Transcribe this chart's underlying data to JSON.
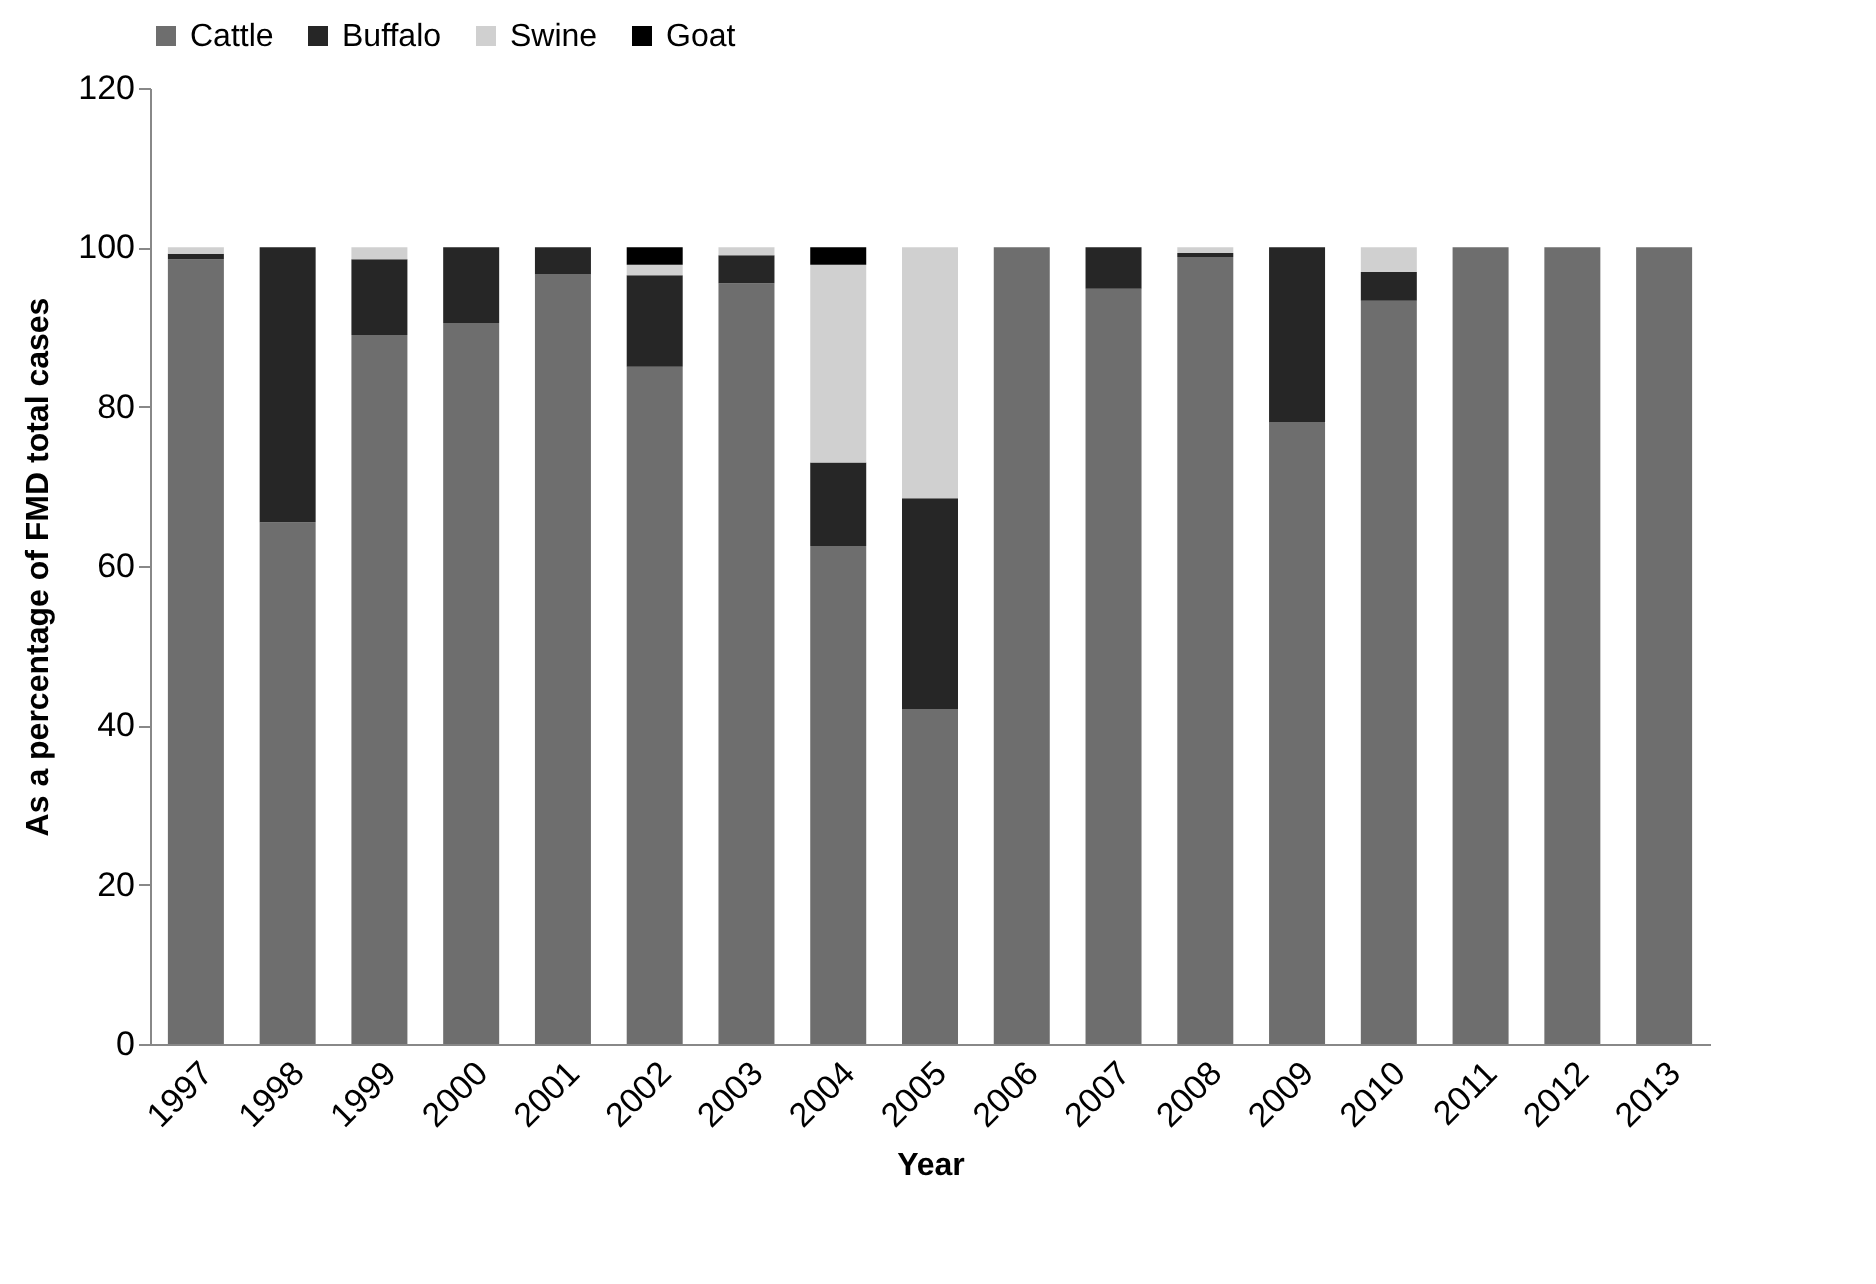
{
  "chart_data": {
    "type": "bar",
    "stacked": true,
    "xlabel": "Year",
    "ylabel": "As a percentage of FMD total cases",
    "categories": [
      "1997",
      "1998",
      "1999",
      "2000",
      "2001",
      "2002",
      "2003",
      "2004",
      "2005",
      "2006",
      "2007",
      "2008",
      "2009",
      "2010",
      "2011",
      "2012",
      "2013"
    ],
    "series": [
      {
        "name": "Cattle",
        "color": "#6e6e6e",
        "values": [
          98.5,
          65.5,
          89,
          90.5,
          96.6,
          85,
          95.5,
          62.5,
          42,
          100,
          94.8,
          98.8,
          78,
          93.3,
          100,
          100,
          100
        ]
      },
      {
        "name": "Buffalo",
        "color": "#262626",
        "values": [
          0.7,
          34.5,
          9.5,
          9.5,
          3.4,
          11.5,
          3.5,
          10.5,
          26.5,
          0,
          5.2,
          0.5,
          22,
          3.6,
          0,
          0,
          0
        ]
      },
      {
        "name": "Swine",
        "color": "#d0d0d0",
        "values": [
          0.8,
          0,
          1.5,
          0,
          0,
          1.3,
          1,
          24.8,
          31.5,
          0,
          0,
          0.7,
          0,
          3.1,
          0,
          0,
          0
        ]
      },
      {
        "name": "Goat",
        "color": "#000000",
        "values": [
          0,
          0,
          0,
          0,
          0,
          2.2,
          0,
          2.2,
          0,
          0,
          0,
          0,
          0,
          0,
          0,
          0,
          0
        ]
      }
    ],
    "ylim": [
      0,
      120
    ],
    "yticks": [
      0,
      20,
      40,
      60,
      80,
      100,
      120
    ],
    "grid": false,
    "legend": "top"
  }
}
